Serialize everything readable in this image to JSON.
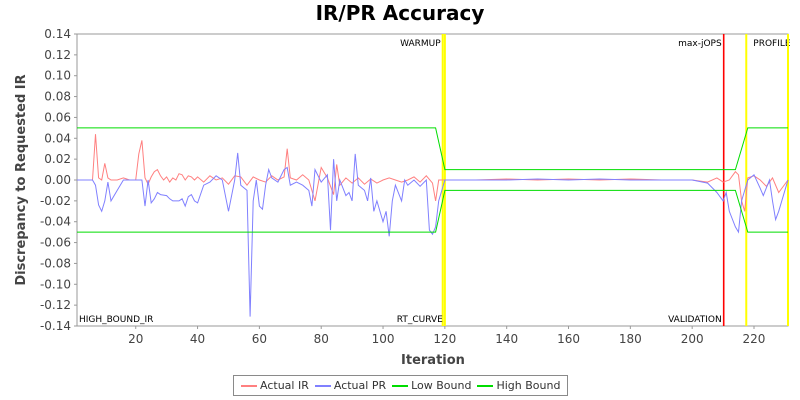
{
  "chart_data": {
    "type": "line",
    "title": "IR/PR Accuracy",
    "xlabel": "Iteration",
    "ylabel": "Discrepancy to Requested IR",
    "xlim": [
      1,
      231
    ],
    "ylim": [
      -0.14,
      0.14
    ],
    "x_ticks": [
      20,
      40,
      60,
      80,
      100,
      120,
      140,
      160,
      180,
      200,
      220
    ],
    "y_ticks": [
      -0.14,
      -0.12,
      -0.1,
      -0.08,
      -0.06,
      -0.04,
      -0.02,
      0.0,
      0.02,
      0.04,
      0.06,
      0.08,
      0.1,
      0.12,
      0.14
    ],
    "y_tick_labels": [
      "-0.14",
      "-0.12",
      "-0.10",
      "-0.08",
      "-0.06",
      "-0.04",
      "-0.02",
      "0.00",
      "0.02",
      "0.04",
      "0.06",
      "0.08",
      "0.10",
      "0.12",
      "0.14"
    ],
    "grid": false,
    "legend_position": "bottom",
    "markers": [
      {
        "x": 119.3,
        "label": "WARMUP",
        "color": "#ffff00",
        "label_side": "left"
      },
      {
        "x": 120.0,
        "label": "RT_CURVE",
        "color": "#ffff00",
        "label_side": "left",
        "bottom": true
      },
      {
        "x": 210.2,
        "label": "max-jOPS",
        "color": "#ff0000",
        "label_side": "left"
      },
      {
        "x": 210.2,
        "label": "VALIDATION",
        "color": "#ff0000",
        "label_side": "left",
        "bottom": true
      },
      {
        "x": 217.5,
        "label": "PROFILE",
        "color": "#ffff00",
        "label_side": "right"
      },
      {
        "x": 231.0,
        "label": "",
        "color": "#ffff00",
        "label_side": "none"
      }
    ],
    "corner_label": "HIGH_BOUND_IR",
    "series": [
      {
        "name": "Actual IR",
        "color": "#ff8080",
        "points": [
          [
            1,
            0
          ],
          [
            6,
            0
          ],
          [
            7,
            0.044
          ],
          [
            8,
            0.002
          ],
          [
            9,
            0
          ],
          [
            10,
            0.016
          ],
          [
            11,
            0.002
          ],
          [
            12,
            0
          ],
          [
            14,
            0
          ],
          [
            16,
            0.002
          ],
          [
            18,
            0
          ],
          [
            20,
            0
          ],
          [
            21,
            0.025
          ],
          [
            22,
            0.038
          ],
          [
            23,
            0.002
          ],
          [
            24,
            -0.004
          ],
          [
            25,
            0.003
          ],
          [
            26,
            0.008
          ],
          [
            27,
            0.01
          ],
          [
            28,
            0.004
          ],
          [
            29,
            0
          ],
          [
            30,
            0.003
          ],
          [
            31,
            -0.002
          ],
          [
            32,
            0.002
          ],
          [
            33,
            0
          ],
          [
            34,
            0.006
          ],
          [
            35,
            0.005
          ],
          [
            36,
            0
          ],
          [
            37,
            0.004
          ],
          [
            38,
            0.003
          ],
          [
            39,
            0
          ],
          [
            40,
            0.003
          ],
          [
            42,
            -0.002
          ],
          [
            44,
            0.004
          ],
          [
            46,
            0
          ],
          [
            48,
            0.002
          ],
          [
            50,
            -0.004
          ],
          [
            52,
            0.004
          ],
          [
            54,
            0.003
          ],
          [
            56,
            -0.005
          ],
          [
            58,
            0.003
          ],
          [
            60,
            0
          ],
          [
            62,
            -0.002
          ],
          [
            64,
            0.004
          ],
          [
            66,
            0
          ],
          [
            68,
            0.003
          ],
          [
            69,
            0.03
          ],
          [
            70,
            0.002
          ],
          [
            72,
            0
          ],
          [
            74,
            0.005
          ],
          [
            76,
            0
          ],
          [
            78,
            -0.02
          ],
          [
            80,
            0.012
          ],
          [
            82,
            0.002
          ],
          [
            84,
            -0.014
          ],
          [
            85,
            0.015
          ],
          [
            86,
            -0.005
          ],
          [
            88,
            0.002
          ],
          [
            90,
            -0.003
          ],
          [
            92,
            0.002
          ],
          [
            94,
            -0.004
          ],
          [
            96,
            0.001
          ],
          [
            98,
            -0.003
          ],
          [
            100,
            0
          ],
          [
            102,
            0.002
          ],
          [
            104,
            0
          ],
          [
            106,
            -0.002
          ],
          [
            108,
            0
          ],
          [
            110,
            0.003
          ],
          [
            112,
            -0.002
          ],
          [
            114,
            0.004
          ],
          [
            116,
            -0.003
          ],
          [
            117,
            -0.02
          ],
          [
            118,
            0
          ],
          [
            120,
            0
          ],
          [
            130,
            0
          ],
          [
            140,
            0.001
          ],
          [
            150,
            0
          ],
          [
            160,
            0.001
          ],
          [
            170,
            0
          ],
          [
            180,
            0.001
          ],
          [
            190,
            0
          ],
          [
            200,
            0
          ],
          [
            205,
            -0.002
          ],
          [
            208,
            0.002
          ],
          [
            210,
            -0.002
          ],
          [
            212,
            0
          ],
          [
            214,
            0.008
          ],
          [
            215,
            0.005
          ],
          [
            216,
            -0.02
          ],
          [
            217,
            -0.03
          ],
          [
            218,
            0.002
          ],
          [
            220,
            0.004
          ],
          [
            222,
            0
          ],
          [
            224,
            -0.006
          ],
          [
            226,
            0.002
          ],
          [
            228,
            -0.012
          ],
          [
            231,
            0
          ]
        ]
      },
      {
        "name": "Actual PR",
        "color": "#8080ff",
        "points": [
          [
            1,
            0
          ],
          [
            6,
            0
          ],
          [
            7,
            -0.005
          ],
          [
            8,
            -0.024
          ],
          [
            9,
            -0.03
          ],
          [
            10,
            -0.02
          ],
          [
            11,
            -0.002
          ],
          [
            12,
            -0.02
          ],
          [
            14,
            -0.01
          ],
          [
            16,
            0
          ],
          [
            18,
            0
          ],
          [
            20,
            0
          ],
          [
            21,
            0
          ],
          [
            22,
            0
          ],
          [
            23,
            -0.025
          ],
          [
            24,
            0
          ],
          [
            25,
            -0.022
          ],
          [
            26,
            -0.018
          ],
          [
            27,
            -0.012
          ],
          [
            28,
            -0.014
          ],
          [
            30,
            -0.015
          ],
          [
            31,
            -0.018
          ],
          [
            32,
            -0.02
          ],
          [
            33,
            -0.02
          ],
          [
            34,
            -0.02
          ],
          [
            35,
            -0.018
          ],
          [
            36,
            -0.025
          ],
          [
            37,
            -0.016
          ],
          [
            38,
            -0.014
          ],
          [
            39,
            -0.02
          ],
          [
            40,
            -0.022
          ],
          [
            42,
            -0.005
          ],
          [
            44,
            -0.002
          ],
          [
            46,
            0.004
          ],
          [
            48,
            0
          ],
          [
            50,
            -0.03
          ],
          [
            52,
            0
          ],
          [
            53,
            0.026
          ],
          [
            54,
            -0.005
          ],
          [
            56,
            -0.01
          ],
          [
            57,
            -0.131
          ],
          [
            58,
            -0.02
          ],
          [
            59,
            0
          ],
          [
            60,
            -0.025
          ],
          [
            61,
            -0.028
          ],
          [
            62,
            -0.005
          ],
          [
            63,
            0.01
          ],
          [
            64,
            0.002
          ],
          [
            66,
            -0.002
          ],
          [
            68,
            0.01
          ],
          [
            69,
            0.012
          ],
          [
            70,
            -0.005
          ],
          [
            72,
            -0.002
          ],
          [
            74,
            -0.005
          ],
          [
            76,
            -0.01
          ],
          [
            77,
            -0.025
          ],
          [
            78,
            0.01
          ],
          [
            80,
            -0.002
          ],
          [
            82,
            0.005
          ],
          [
            83,
            -0.048
          ],
          [
            84,
            0.02
          ],
          [
            85,
            -0.02
          ],
          [
            86,
            0
          ],
          [
            88,
            -0.015
          ],
          [
            89,
            -0.012
          ],
          [
            90,
            -0.02
          ],
          [
            91,
            0.025
          ],
          [
            92,
            -0.005
          ],
          [
            94,
            -0.01
          ],
          [
            95,
            -0.02
          ],
          [
            96,
            0.002
          ],
          [
            97,
            -0.03
          ],
          [
            98,
            -0.02
          ],
          [
            100,
            -0.04
          ],
          [
            101,
            -0.03
          ],
          [
            102,
            -0.054
          ],
          [
            103,
            -0.02
          ],
          [
            104,
            -0.005
          ],
          [
            106,
            -0.02
          ],
          [
            107,
            0
          ],
          [
            108,
            -0.005
          ],
          [
            110,
            0
          ],
          [
            112,
            -0.006
          ],
          [
            114,
            0
          ],
          [
            115,
            -0.048
          ],
          [
            116,
            -0.052
          ],
          [
            117,
            -0.045
          ],
          [
            118,
            -0.02
          ],
          [
            120,
            0
          ],
          [
            130,
            0
          ],
          [
            140,
            0
          ],
          [
            150,
            0.001
          ],
          [
            160,
            0
          ],
          [
            170,
            0.001
          ],
          [
            180,
            0
          ],
          [
            190,
            0
          ],
          [
            200,
            0
          ],
          [
            205,
            -0.003
          ],
          [
            208,
            -0.012
          ],
          [
            210,
            -0.02
          ],
          [
            211,
            -0.012
          ],
          [
            212,
            -0.03
          ],
          [
            214,
            -0.045
          ],
          [
            215,
            -0.05
          ],
          [
            216,
            -0.02
          ],
          [
            217,
            -0.01
          ],
          [
            218,
            0
          ],
          [
            220,
            0.005
          ],
          [
            222,
            -0.008
          ],
          [
            223,
            -0.015
          ],
          [
            225,
            0
          ],
          [
            226,
            -0.02
          ],
          [
            227,
            -0.038
          ],
          [
            228,
            -0.03
          ],
          [
            231,
            0
          ]
        ]
      },
      {
        "name": "Low Bound",
        "color": "#00dd00",
        "points": [
          [
            1,
            -0.05
          ],
          [
            117,
            -0.05
          ],
          [
            120,
            -0.01
          ],
          [
            214,
            -0.01
          ],
          [
            218,
            -0.05
          ],
          [
            231,
            -0.05
          ]
        ]
      },
      {
        "name": "High Bound",
        "color": "#00dd00",
        "points": [
          [
            1,
            0.05
          ],
          [
            117,
            0.05
          ],
          [
            120,
            0.01
          ],
          [
            214,
            0.01
          ],
          [
            218,
            0.05
          ],
          [
            231,
            0.05
          ]
        ]
      }
    ]
  }
}
